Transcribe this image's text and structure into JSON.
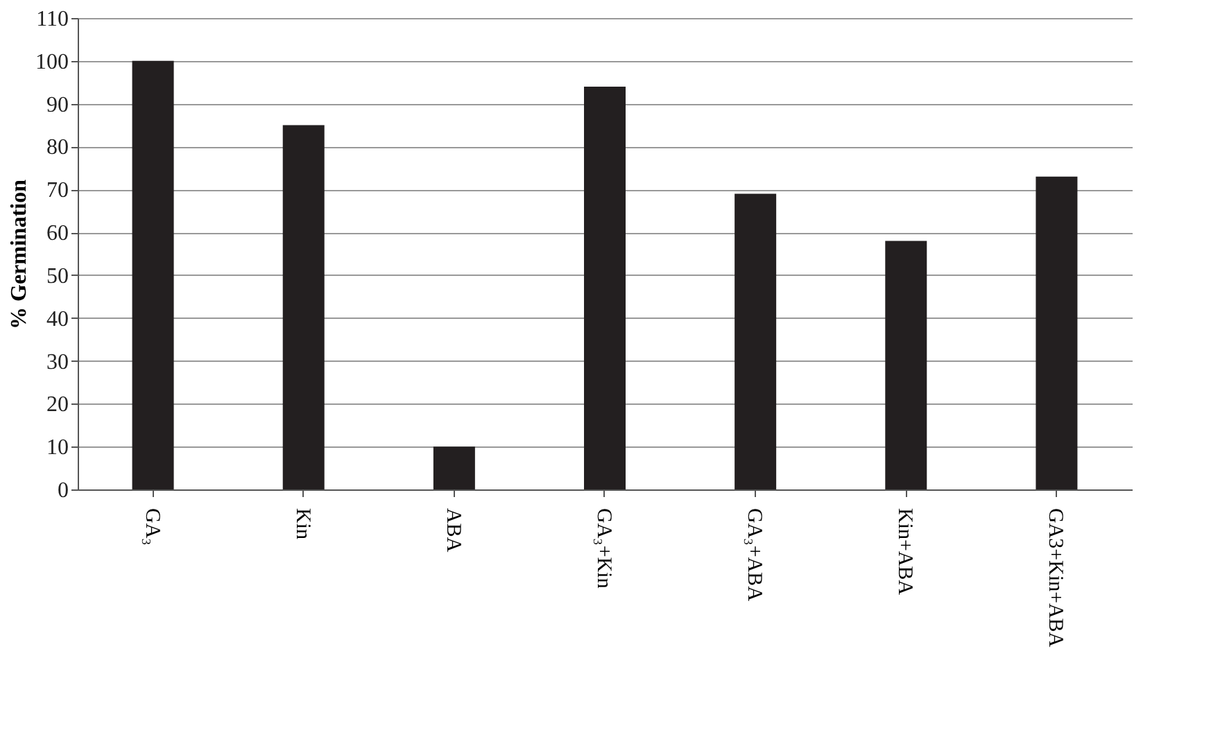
{
  "chart_data": {
    "type": "bar",
    "ylabel": "% Germination",
    "categories": [
      "GA₃",
      "Kin",
      "ABA",
      "GA₃+Kin",
      "GA₃+ABA",
      "Kin+ABA",
      "GA3+Kin+ABA"
    ],
    "values": [
      100,
      85,
      10,
      94,
      69,
      58,
      73
    ],
    "color": "#231f20",
    "ylim": [
      0,
      110
    ],
    "yticks": [
      0,
      10,
      20,
      30,
      40,
      50,
      60,
      70,
      80,
      90,
      100,
      110
    ],
    "grid": "y"
  }
}
